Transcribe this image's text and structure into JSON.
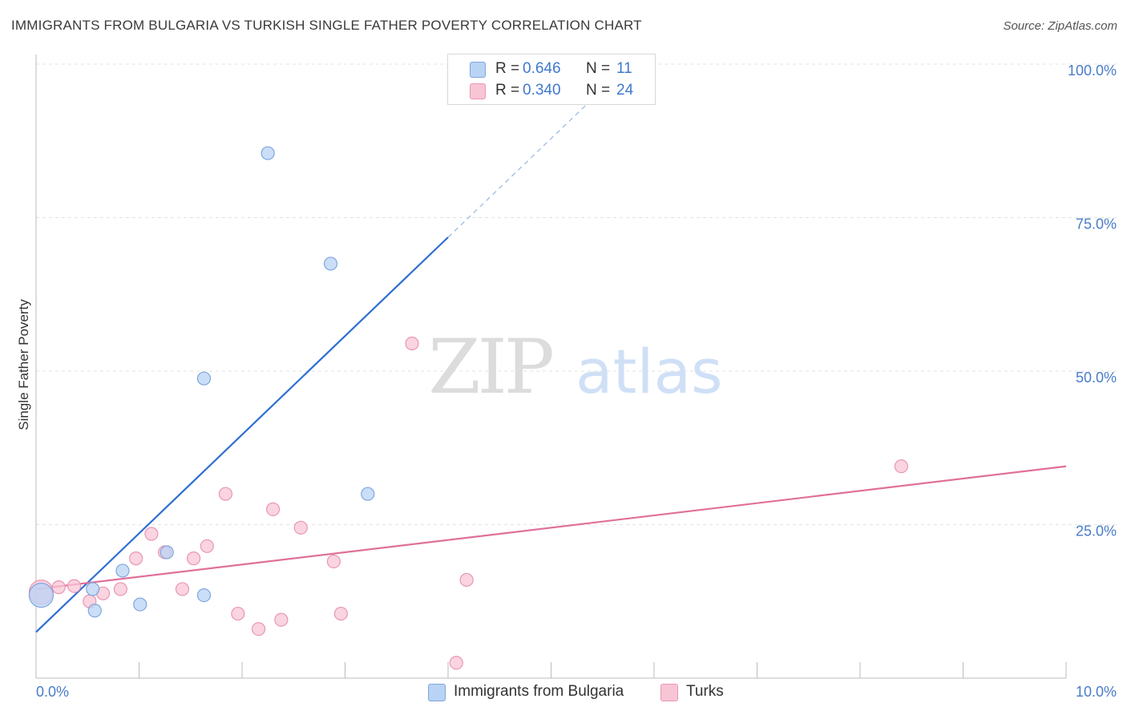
{
  "title": "IMMIGRANTS FROM BULGARIA VS TURKISH SINGLE FATHER POVERTY CORRELATION CHART",
  "source": "Source: ZipAtlas.com",
  "watermark": {
    "zip": "ZIP",
    "atlas": "atlas"
  },
  "legend": {
    "rows": [
      {
        "r_label": "R =",
        "r_value": "0.646",
        "n_label": "N =",
        "n_value": "11"
      },
      {
        "r_label": "R =",
        "r_value": "0.340",
        "n_label": "N =",
        "n_value": "24"
      }
    ]
  },
  "bottom_legend": [
    "Immigrants from Bulgaria",
    "Turks"
  ],
  "colors": {
    "bulgaria_fill": "#b9d3f5",
    "bulgaria_stroke": "#7fa6dc",
    "bulgaria_line": "#2e6fd0",
    "turks_fill": "#f8c5d5",
    "turks_stroke": "#e996b2",
    "turks_line": "#e0709a",
    "tick_text": "#4a7cc9"
  },
  "chart_data": {
    "type": "scatter",
    "title": "IMMIGRANTS FROM BULGARIA VS TURKISH SINGLE FATHER POVERTY CORRELATION CHART",
    "xlabel": "",
    "ylabel": "Single Father Poverty",
    "xlim": [
      0,
      10
    ],
    "ylim": [
      0,
      100
    ],
    "x_ticks": [
      "0.0%",
      "10.0%"
    ],
    "y_ticks": [
      "25.0%",
      "50.0%",
      "75.0%",
      "100.0%"
    ],
    "grid": true,
    "series": [
      {
        "name": "Immigrants from Bulgaria",
        "points": [
          {
            "x": 0.05,
            "y": 13.5,
            "big": true
          },
          {
            "x": 0.55,
            "y": 14.5
          },
          {
            "x": 0.57,
            "y": 11.0
          },
          {
            "x": 0.84,
            "y": 17.5
          },
          {
            "x": 1.01,
            "y": 12.0
          },
          {
            "x": 1.27,
            "y": 20.5
          },
          {
            "x": 1.63,
            "y": 13.5
          },
          {
            "x": 1.63,
            "y": 48.8
          },
          {
            "x": 2.25,
            "y": 85.5
          },
          {
            "x": 2.86,
            "y": 67.5
          },
          {
            "x": 3.22,
            "y": 30.0
          }
        ],
        "trend": {
          "x0": 0.0,
          "y0": 7.5,
          "x1": 4.0,
          "y1": 71.8,
          "dash_to_x": 10.0
        }
      },
      {
        "name": "Turks",
        "points": [
          {
            "x": 0.05,
            "y": 14.0,
            "big": true
          },
          {
            "x": 0.22,
            "y": 14.8
          },
          {
            "x": 0.37,
            "y": 15.0
          },
          {
            "x": 0.52,
            "y": 12.5
          },
          {
            "x": 0.65,
            "y": 13.8
          },
          {
            "x": 0.82,
            "y": 14.5
          },
          {
            "x": 0.97,
            "y": 19.5
          },
          {
            "x": 1.12,
            "y": 23.5
          },
          {
            "x": 1.25,
            "y": 20.5
          },
          {
            "x": 1.42,
            "y": 14.5
          },
          {
            "x": 1.53,
            "y": 19.5
          },
          {
            "x": 1.66,
            "y": 21.5
          },
          {
            "x": 1.84,
            "y": 30.0
          },
          {
            "x": 1.96,
            "y": 10.5
          },
          {
            "x": 2.16,
            "y": 8.0
          },
          {
            "x": 2.3,
            "y": 27.5
          },
          {
            "x": 2.38,
            "y": 9.5
          },
          {
            "x": 2.57,
            "y": 24.5
          },
          {
            "x": 2.89,
            "y": 19.0
          },
          {
            "x": 2.96,
            "y": 10.5
          },
          {
            "x": 3.65,
            "y": 54.5
          },
          {
            "x": 4.18,
            "y": 16.0
          },
          {
            "x": 4.08,
            "y": 2.5
          },
          {
            "x": 8.4,
            "y": 34.5
          }
        ],
        "trend": {
          "x0": 0.0,
          "y0": 14.5,
          "x1": 10.0,
          "y1": 34.5
        }
      }
    ]
  }
}
